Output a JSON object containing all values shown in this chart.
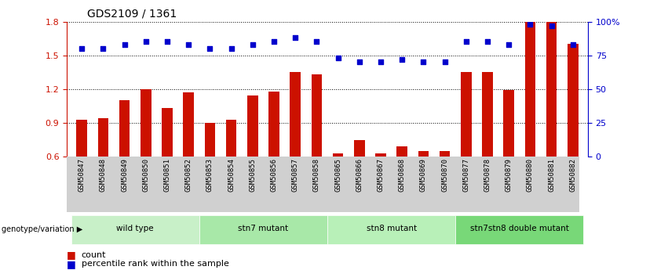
{
  "title": "GDS2109 / 1361",
  "samples": [
    "GSM50847",
    "GSM50848",
    "GSM50849",
    "GSM50850",
    "GSM50851",
    "GSM50852",
    "GSM50853",
    "GSM50854",
    "GSM50855",
    "GSM50856",
    "GSM50857",
    "GSM50858",
    "GSM50865",
    "GSM50866",
    "GSM50867",
    "GSM50868",
    "GSM50869",
    "GSM50870",
    "GSM50877",
    "GSM50878",
    "GSM50879",
    "GSM50880",
    "GSM50881",
    "GSM50882"
  ],
  "bar_values": [
    0.93,
    0.94,
    1.1,
    1.2,
    1.03,
    1.17,
    0.9,
    0.93,
    1.14,
    1.18,
    1.35,
    1.33,
    0.63,
    0.75,
    0.63,
    0.69,
    0.65,
    0.65,
    1.35,
    1.35,
    1.19,
    1.8,
    1.8,
    1.6
  ],
  "percentile_values": [
    80,
    80,
    83,
    85,
    85,
    83,
    80,
    80,
    83,
    85,
    88,
    85,
    73,
    70,
    70,
    72,
    70,
    70,
    85,
    85,
    83,
    98,
    97,
    83
  ],
  "groups": [
    {
      "label": "wild type",
      "start": 0,
      "end": 6,
      "color": "#c8f0c8"
    },
    {
      "label": "stn7 mutant",
      "start": 6,
      "end": 12,
      "color": "#a8e8a8"
    },
    {
      "label": "stn8 mutant",
      "start": 12,
      "end": 18,
      "color": "#b8f0b8"
    },
    {
      "label": "stn7stn8 double mutant",
      "start": 18,
      "end": 24,
      "color": "#78d878"
    }
  ],
  "ylim_left": [
    0.6,
    1.8
  ],
  "ylim_right": [
    0,
    100
  ],
  "yticks_left": [
    0.6,
    0.9,
    1.2,
    1.5,
    1.8
  ],
  "yticks_right": [
    0,
    25,
    50,
    75,
    100
  ],
  "bar_color": "#cc1100",
  "dot_color": "#0000cc",
  "bg_color": "#d0d0d0",
  "genotype_label": "genotype/variation",
  "legend_bar": "count",
  "legend_dot": "percentile rank within the sample",
  "bar_bottom": 0.6
}
